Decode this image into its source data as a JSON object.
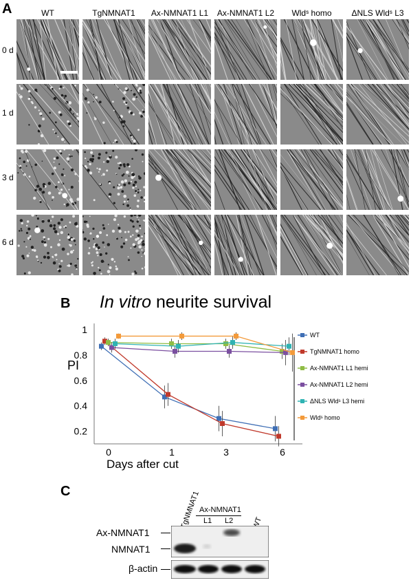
{
  "panel_a": {
    "letter": "A",
    "columns": [
      "WT",
      "TgNMNAT1",
      "Ax-NMNAT1 L1",
      "Ax-NMNAT1 L2",
      "Wldˢ homo",
      "ΔNLS Wldˢ L3"
    ],
    "rows": [
      "0 d",
      "1 d",
      "3 d",
      "6 d"
    ]
  },
  "panel_b": {
    "letter": "B",
    "title_italic": "In vitro",
    "title_rest": " neurite survival",
    "chart_data": {
      "type": "line",
      "title": "In vitro neurite survival",
      "xlabel": "Days after cut",
      "ylabel": "PI",
      "categories": [
        "0",
        "1",
        "3",
        "6"
      ],
      "x_ticks": [
        "0",
        "1",
        "3",
        "6"
      ],
      "y_ticks": [
        "0.2",
        "0.4",
        "0.6",
        "0.8",
        "1"
      ],
      "ylim": [
        0.1,
        1.05
      ],
      "legend_position": "right",
      "series": [
        {
          "name": "WT",
          "color": "#3f6fb5",
          "values": [
            0.87,
            0.47,
            0.3,
            0.22
          ],
          "err": [
            0.03,
            0.09,
            0.1,
            0.1
          ]
        },
        {
          "name": "TgNMNAT1 homo",
          "color": "#c0392b",
          "values": [
            0.91,
            0.49,
            0.26,
            0.16
          ],
          "err": [
            0.03,
            0.09,
            0.1,
            0.08
          ]
        },
        {
          "name": "Ax-NMNAT1 L1 hemi",
          "color": "#8fbc45",
          "values": [
            0.9,
            0.89,
            0.89,
            0.83
          ],
          "err": [
            0.03,
            0.04,
            0.04,
            0.06
          ]
        },
        {
          "name": "Ax-NMNAT1 L2 hemi",
          "color": "#7b4fa0",
          "values": [
            0.86,
            0.83,
            0.83,
            0.82
          ],
          "err": [
            0.04,
            0.05,
            0.05,
            0.1
          ]
        },
        {
          "name": "ΔNLS Wldˢ L3 hemi",
          "color": "#2fb3b3",
          "values": [
            0.89,
            0.87,
            0.9,
            0.87
          ],
          "err": [
            0.04,
            0.05,
            0.05,
            0.07
          ]
        },
        {
          "name": "Wldˢ homo",
          "color": "#f39a3a",
          "values": [
            0.95,
            0.95,
            0.95,
            0.82
          ],
          "err": [
            0.02,
            0.03,
            0.03,
            0.15
          ]
        }
      ]
    }
  },
  "panel_c": {
    "letter": "C",
    "lanes": [
      "TgNMNAT1",
      "L1",
      "L2",
      "WT"
    ],
    "group_label": "Ax-NMNAT1",
    "bands": [
      "Ax-NMNAT1",
      "NMNAT1",
      "β-actin"
    ]
  },
  "colors": {
    "background": "#ffffff",
    "tile_gray": "#8a8a8a",
    "blot_background": "#efefef"
  }
}
